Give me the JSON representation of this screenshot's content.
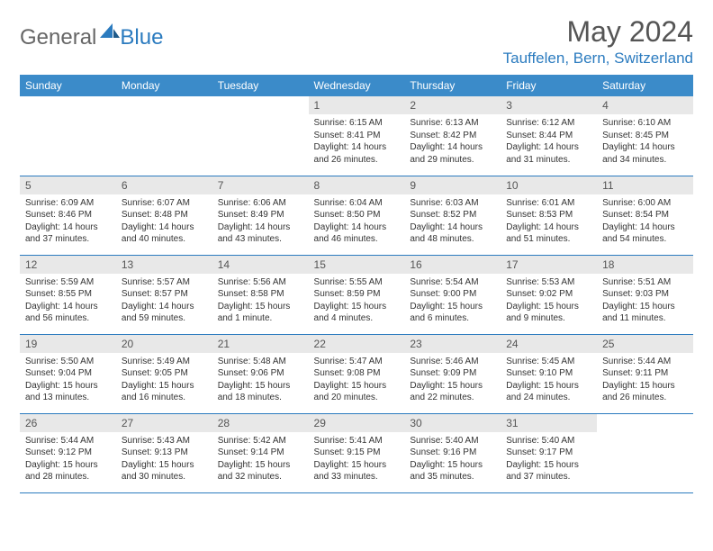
{
  "logo": {
    "textGeneral": "General",
    "textBlue": "Blue"
  },
  "title": "May 2024",
  "location": "Tauffelen, Bern, Switzerland",
  "colors": {
    "headerBg": "#3b8bc9",
    "accent": "#2b7bbf",
    "dayNumBg": "#e8e8e8",
    "text": "#333333",
    "titleText": "#555555"
  },
  "weekdays": [
    "Sunday",
    "Monday",
    "Tuesday",
    "Wednesday",
    "Thursday",
    "Friday",
    "Saturday"
  ],
  "weeks": [
    [
      {
        "n": "",
        "sr": "",
        "ss": "",
        "dl": ""
      },
      {
        "n": "",
        "sr": "",
        "ss": "",
        "dl": ""
      },
      {
        "n": "",
        "sr": "",
        "ss": "",
        "dl": ""
      },
      {
        "n": "1",
        "sr": "6:15 AM",
        "ss": "8:41 PM",
        "dl": "14 hours and 26 minutes."
      },
      {
        "n": "2",
        "sr": "6:13 AM",
        "ss": "8:42 PM",
        "dl": "14 hours and 29 minutes."
      },
      {
        "n": "3",
        "sr": "6:12 AM",
        "ss": "8:44 PM",
        "dl": "14 hours and 31 minutes."
      },
      {
        "n": "4",
        "sr": "6:10 AM",
        "ss": "8:45 PM",
        "dl": "14 hours and 34 minutes."
      }
    ],
    [
      {
        "n": "5",
        "sr": "6:09 AM",
        "ss": "8:46 PM",
        "dl": "14 hours and 37 minutes."
      },
      {
        "n": "6",
        "sr": "6:07 AM",
        "ss": "8:48 PM",
        "dl": "14 hours and 40 minutes."
      },
      {
        "n": "7",
        "sr": "6:06 AM",
        "ss": "8:49 PM",
        "dl": "14 hours and 43 minutes."
      },
      {
        "n": "8",
        "sr": "6:04 AM",
        "ss": "8:50 PM",
        "dl": "14 hours and 46 minutes."
      },
      {
        "n": "9",
        "sr": "6:03 AM",
        "ss": "8:52 PM",
        "dl": "14 hours and 48 minutes."
      },
      {
        "n": "10",
        "sr": "6:01 AM",
        "ss": "8:53 PM",
        "dl": "14 hours and 51 minutes."
      },
      {
        "n": "11",
        "sr": "6:00 AM",
        "ss": "8:54 PM",
        "dl": "14 hours and 54 minutes."
      }
    ],
    [
      {
        "n": "12",
        "sr": "5:59 AM",
        "ss": "8:55 PM",
        "dl": "14 hours and 56 minutes."
      },
      {
        "n": "13",
        "sr": "5:57 AM",
        "ss": "8:57 PM",
        "dl": "14 hours and 59 minutes."
      },
      {
        "n": "14",
        "sr": "5:56 AM",
        "ss": "8:58 PM",
        "dl": "15 hours and 1 minute."
      },
      {
        "n": "15",
        "sr": "5:55 AM",
        "ss": "8:59 PM",
        "dl": "15 hours and 4 minutes."
      },
      {
        "n": "16",
        "sr": "5:54 AM",
        "ss": "9:00 PM",
        "dl": "15 hours and 6 minutes."
      },
      {
        "n": "17",
        "sr": "5:53 AM",
        "ss": "9:02 PM",
        "dl": "15 hours and 9 minutes."
      },
      {
        "n": "18",
        "sr": "5:51 AM",
        "ss": "9:03 PM",
        "dl": "15 hours and 11 minutes."
      }
    ],
    [
      {
        "n": "19",
        "sr": "5:50 AM",
        "ss": "9:04 PM",
        "dl": "15 hours and 13 minutes."
      },
      {
        "n": "20",
        "sr": "5:49 AM",
        "ss": "9:05 PM",
        "dl": "15 hours and 16 minutes."
      },
      {
        "n": "21",
        "sr": "5:48 AM",
        "ss": "9:06 PM",
        "dl": "15 hours and 18 minutes."
      },
      {
        "n": "22",
        "sr": "5:47 AM",
        "ss": "9:08 PM",
        "dl": "15 hours and 20 minutes."
      },
      {
        "n": "23",
        "sr": "5:46 AM",
        "ss": "9:09 PM",
        "dl": "15 hours and 22 minutes."
      },
      {
        "n": "24",
        "sr": "5:45 AM",
        "ss": "9:10 PM",
        "dl": "15 hours and 24 minutes."
      },
      {
        "n": "25",
        "sr": "5:44 AM",
        "ss": "9:11 PM",
        "dl": "15 hours and 26 minutes."
      }
    ],
    [
      {
        "n": "26",
        "sr": "5:44 AM",
        "ss": "9:12 PM",
        "dl": "15 hours and 28 minutes."
      },
      {
        "n": "27",
        "sr": "5:43 AM",
        "ss": "9:13 PM",
        "dl": "15 hours and 30 minutes."
      },
      {
        "n": "28",
        "sr": "5:42 AM",
        "ss": "9:14 PM",
        "dl": "15 hours and 32 minutes."
      },
      {
        "n": "29",
        "sr": "5:41 AM",
        "ss": "9:15 PM",
        "dl": "15 hours and 33 minutes."
      },
      {
        "n": "30",
        "sr": "5:40 AM",
        "ss": "9:16 PM",
        "dl": "15 hours and 35 minutes."
      },
      {
        "n": "31",
        "sr": "5:40 AM",
        "ss": "9:17 PM",
        "dl": "15 hours and 37 minutes."
      },
      {
        "n": "",
        "sr": "",
        "ss": "",
        "dl": ""
      }
    ]
  ],
  "labels": {
    "sunrise": "Sunrise:",
    "sunset": "Sunset:",
    "daylight": "Daylight:"
  }
}
